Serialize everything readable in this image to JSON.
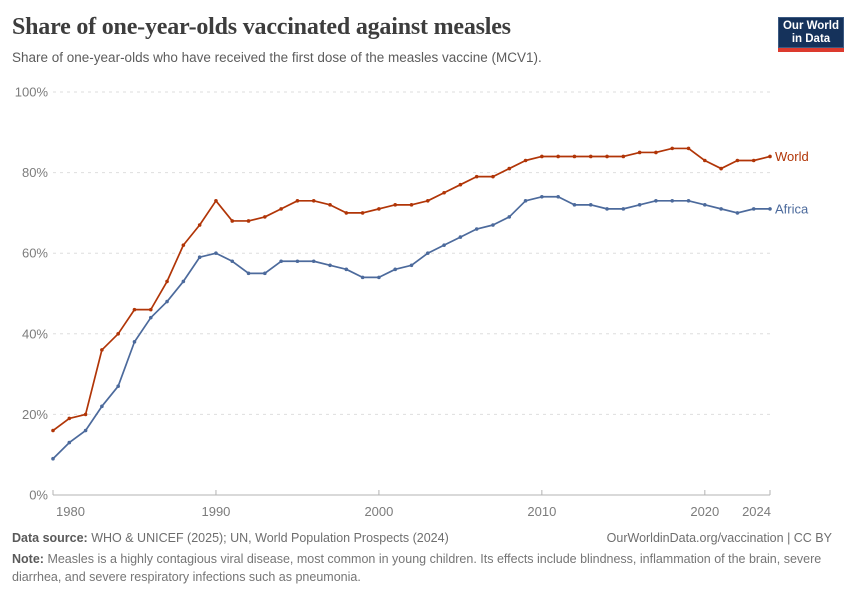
{
  "header": {
    "title": "Share of one-year-olds vaccinated against measles",
    "subtitle": "Share of one-year-olds who have received the first dose of the measles vaccine (MCV1).",
    "logo": {
      "line1": "Our World",
      "line2": "in Data",
      "navy": "#15325b",
      "stripe": "#dc3a2e"
    }
  },
  "chart_data": {
    "type": "line",
    "title": "Share of one-year-olds vaccinated against measles",
    "xlabel": "",
    "ylabel": "",
    "x": [
      1980,
      1981,
      1982,
      1983,
      1984,
      1985,
      1986,
      1987,
      1988,
      1989,
      1990,
      1991,
      1992,
      1993,
      1994,
      1995,
      1996,
      1997,
      1998,
      1999,
      2000,
      2001,
      2002,
      2003,
      2004,
      2005,
      2006,
      2007,
      2008,
      2009,
      2010,
      2011,
      2012,
      2013,
      2014,
      2015,
      2016,
      2017,
      2018,
      2019,
      2020,
      2021,
      2022,
      2023,
      2024
    ],
    "series": [
      {
        "name": "World",
        "color": "#b13507",
        "values": [
          16,
          19,
          20,
          36,
          40,
          46,
          46,
          53,
          62,
          67,
          73,
          68,
          68,
          69,
          71,
          73,
          73,
          72,
          70,
          70,
          71,
          72,
          72,
          73,
          75,
          77,
          79,
          79,
          81,
          83,
          84,
          84,
          84,
          84,
          84,
          84,
          85,
          85,
          86,
          86,
          83,
          81,
          83,
          83,
          84
        ]
      },
      {
        "name": "Africa",
        "color": "#4c6a9c",
        "values": [
          9,
          13,
          16,
          22,
          27,
          38,
          44,
          48,
          53,
          59,
          60,
          58,
          55,
          55,
          58,
          58,
          58,
          57,
          56,
          54,
          54,
          56,
          57,
          60,
          62,
          64,
          66,
          67,
          69,
          73,
          74,
          74,
          72,
          72,
          71,
          71,
          72,
          73,
          73,
          73,
          72,
          71,
          70,
          71,
          71
        ]
      }
    ],
    "xlim": [
      1980,
      2024
    ],
    "ylim": [
      0,
      100
    ],
    "xticks": [
      1980,
      1990,
      2000,
      2010,
      2020,
      2024
    ],
    "yticks": [
      0,
      20,
      40,
      60,
      80,
      100
    ],
    "ytick_labels": [
      "0%",
      "20%",
      "40%",
      "60%",
      "80%",
      "100%"
    ],
    "grid": "horizontal dashed",
    "legend_position": "line-end labels"
  },
  "footer": {
    "source_label": "Data source:",
    "source_text": "WHO & UNICEF (2025); UN, World Population Prospects (2024)",
    "link_text": "OurWorldinData.org/vaccination | CC BY",
    "note_label": "Note:",
    "note_text": "Measles is a highly contagious viral disease, most common in young children. Its effects include blindness, inflammation of the brain, severe diarrhea, and severe respiratory infections such as pneumonia."
  }
}
